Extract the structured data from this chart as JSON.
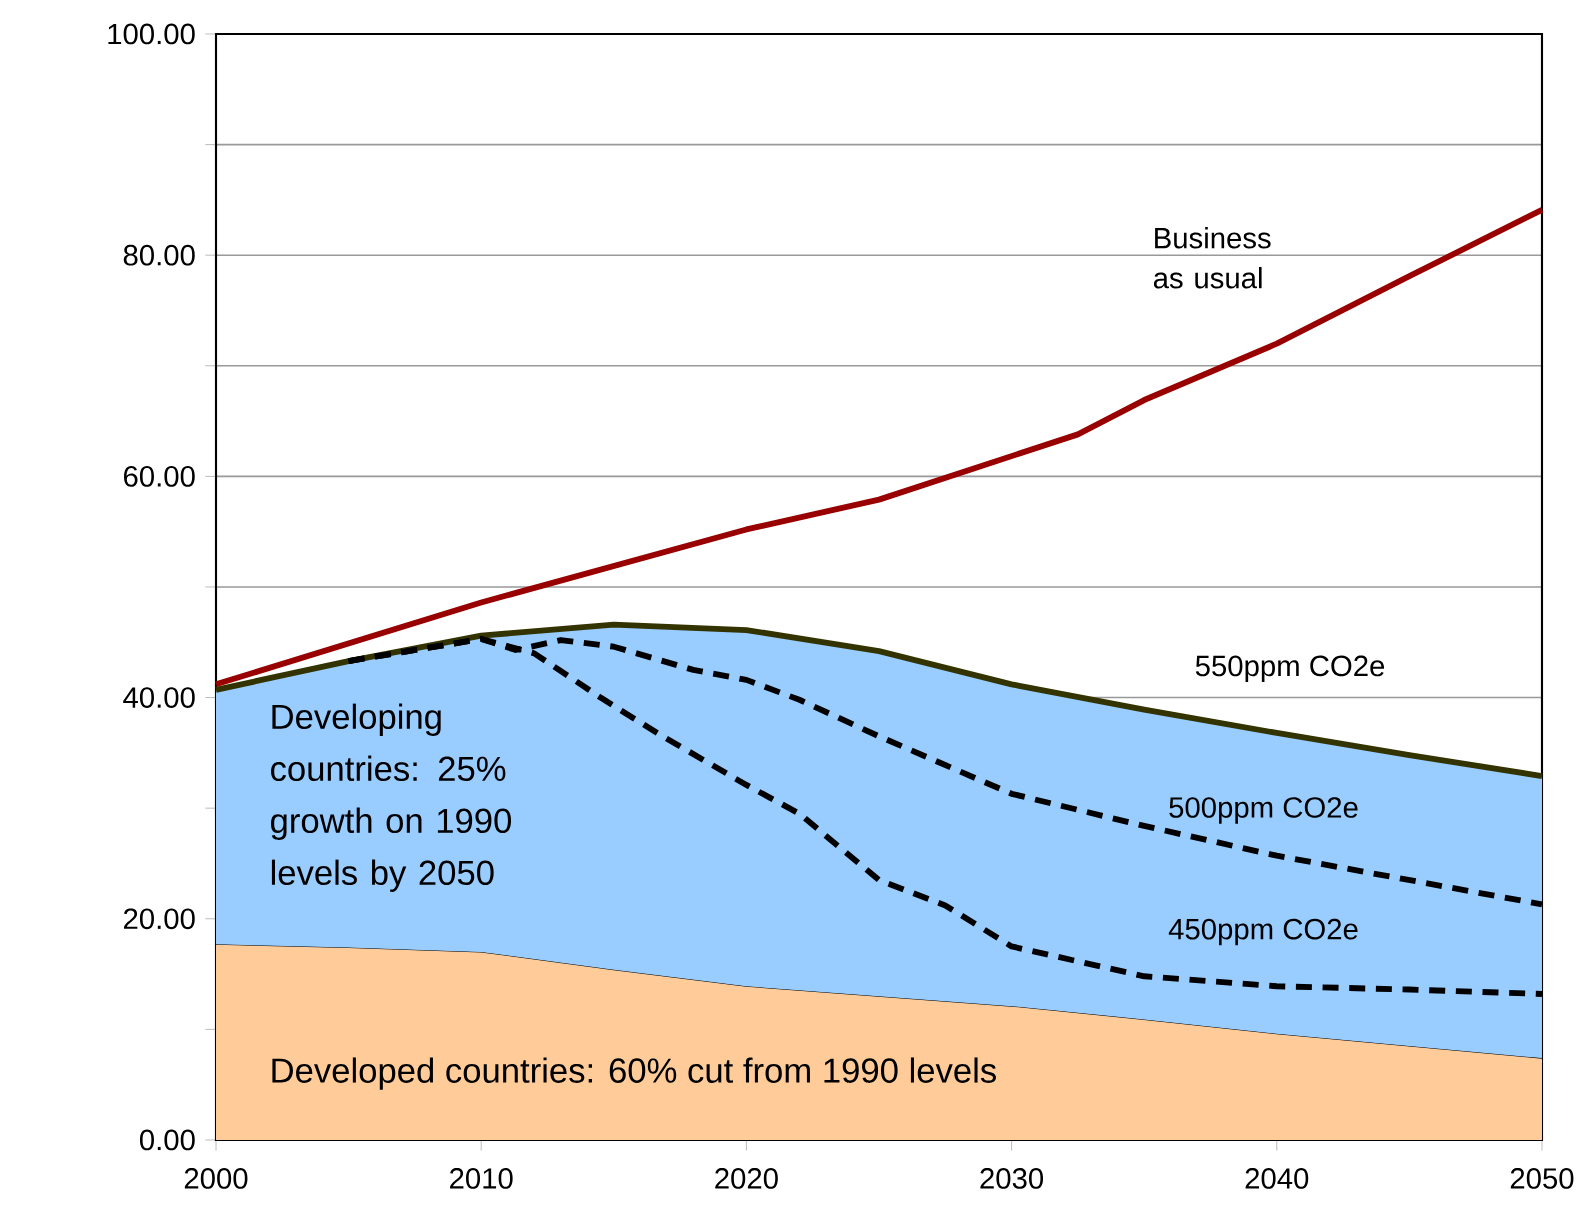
{
  "chart_data": {
    "type": "area",
    "stacked": true,
    "grid": "y",
    "x": [
      2000,
      2005,
      2010,
      2015,
      2020,
      2025,
      2030,
      2035,
      2040,
      2045,
      2050
    ],
    "xlim": [
      2000,
      2050
    ],
    "xticks": [
      2000,
      2010,
      2020,
      2030,
      2040,
      2050
    ],
    "ylim": [
      0,
      100
    ],
    "yticks": [
      {
        "value": 0,
        "label": "0.00"
      },
      {
        "value": 10,
        "label": null
      },
      {
        "value": 20,
        "label": "20.00"
      },
      {
        "value": 30,
        "label": null
      },
      {
        "value": 40,
        "label": "40.00"
      },
      {
        "value": 50,
        "label": null
      },
      {
        "value": 60,
        "label": "60.00"
      },
      {
        "value": 70,
        "label": null
      },
      {
        "value": 80,
        "label": "80.00"
      },
      {
        "value": 90,
        "label": null
      },
      {
        "value": 100,
        "label": "100.00"
      }
    ],
    "series": [
      {
        "name": "Developed countries: 60% cut from 1990 levels",
        "color": "#ffcc99",
        "values": [
          17.7,
          17.4,
          17.0,
          15.4,
          13.9,
          13.0,
          12.1,
          10.9,
          9.6,
          8.5,
          7.4
        ]
      },
      {
        "name": "Developing countries: 25% growth on 1990 levels by 2050",
        "color": "#99ccff",
        "values": [
          23.0,
          25.9,
          28.6,
          31.2,
          32.2,
          31.2,
          29.1,
          28.0,
          27.2,
          26.3,
          25.5
        ]
      },
      {
        "name": "550ppm CO2e",
        "type": "line",
        "color": "#333300",
        "line_style": "solid",
        "values": [
          40.7,
          43.3,
          45.6,
          46.6,
          46.1,
          44.2,
          41.2,
          38.9,
          36.8,
          34.8,
          32.9
        ]
      },
      {
        "name": "500ppm CO2e",
        "type": "line",
        "color": "#000000",
        "line_style": "dashed",
        "x": [
          2005,
          2010,
          2011.3,
          2013,
          2015,
          2018,
          2020,
          2022,
          2025,
          2030,
          2035,
          2040,
          2045,
          2050
        ],
        "values": [
          43.3,
          45.3,
          44.3,
          45.2,
          44.6,
          42.5,
          41.6,
          39.8,
          36.5,
          31.3,
          28.4,
          25.7,
          23.5,
          21.3
        ]
      },
      {
        "name": "450ppm CO2e",
        "type": "line",
        "color": "#000000",
        "line_style": "dashed",
        "x": [
          2005,
          2010,
          2012,
          2014.5,
          2016.7,
          2020,
          2022,
          2025,
          2027.5,
          2030,
          2035,
          2040,
          2045,
          2050
        ],
        "values": [
          43.3,
          45.3,
          44.0,
          40.0,
          36.7,
          32.1,
          29.5,
          23.5,
          21.2,
          17.5,
          14.8,
          13.9,
          13.6,
          13.2
        ]
      },
      {
        "name": "Business as usual",
        "type": "line",
        "color": "#990000",
        "line_style": "solid",
        "x": [
          2000,
          2010,
          2020,
          2025,
          2032.5,
          2035,
          2040,
          2045,
          2050
        ],
        "values": [
          41.2,
          48.6,
          55.2,
          57.9,
          63.8,
          66.9,
          72.0,
          78.1,
          84.1
        ]
      }
    ]
  }
}
